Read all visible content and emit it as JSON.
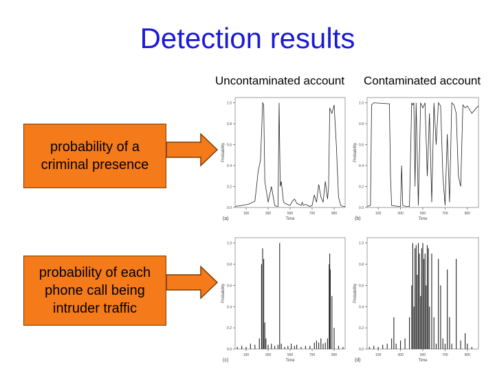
{
  "slide": {
    "title": "Detection results",
    "col_headers": [
      "Uncontaminated account",
      "Contaminated account"
    ],
    "row_labels": [
      "probability of a criminal presence",
      "probability of each phone call being intruder traffic"
    ]
  },
  "colors": {
    "title": "#1a1ad6",
    "box_fill": "#f47a1a",
    "arrow_fill": "#f47a1a",
    "trace": "#222222"
  },
  "chart_data": [
    {
      "type": "line",
      "panel_label": "(a)",
      "xlabel": "Time",
      "ylabel": "Probability",
      "xlim": [
        0,
        1000
      ],
      "ylim": [
        0,
        1.05
      ],
      "xticks": [
        100,
        300,
        500,
        700,
        900
      ],
      "xtick_labels": [
        "100",
        "300",
        "500",
        "700",
        "900"
      ],
      "yticks": [
        0,
        0.2,
        0.4,
        0.6,
        0.8,
        1.0
      ],
      "ytick_labels": [
        "0.0",
        "0.2",
        "0.4",
        "0.6",
        "0.8",
        "1.0"
      ],
      "series": [
        {
          "x": [
            0,
            60,
            120,
            180,
            210,
            230,
            240,
            250,
            260,
            270,
            300,
            330,
            360,
            380,
            390,
            400,
            410,
            420,
            440,
            470,
            500,
            520,
            540,
            560,
            580,
            600,
            610,
            620,
            640,
            660,
            680,
            700,
            720,
            740,
            760,
            780,
            800,
            820,
            840,
            850,
            860,
            880,
            900,
            920,
            940,
            960,
            980,
            1000
          ],
          "y": [
            0.01,
            0.02,
            0.03,
            0.06,
            0.35,
            0.45,
            0.7,
            1.0,
            0.98,
            0.25,
            0.05,
            0.2,
            0.02,
            0.01,
            0.01,
            1.0,
            0.2,
            0.25,
            0.05,
            0.03,
            0.02,
            0.06,
            0.08,
            0.04,
            0.03,
            0.02,
            0.05,
            0.02,
            0.03,
            0.02,
            0.01,
            0.02,
            0.12,
            0.05,
            0.22,
            0.1,
            0.05,
            0.25,
            0.08,
            0.2,
            0.95,
            0.9,
            0.98,
            0.6,
            0.1,
            0.02,
            0.01,
            0.01
          ]
        }
      ]
    },
    {
      "type": "line",
      "panel_label": "(b)",
      "xlabel": "Time",
      "ylabel": "Probability",
      "xlim": [
        0,
        1000
      ],
      "ylim": [
        0,
        1.05
      ],
      "xticks": [
        100,
        300,
        500,
        700,
        900
      ],
      "xtick_labels": [
        "100",
        "300",
        "500",
        "700",
        "900"
      ],
      "yticks": [
        0,
        0.2,
        0.4,
        0.6,
        0.8,
        1.0
      ],
      "ytick_labels": [
        "0.0",
        "0.2",
        "0.4",
        "0.6",
        "0.8",
        "1.0"
      ],
      "series": [
        {
          "x": [
            0,
            30,
            40,
            60,
            200,
            210,
            220,
            280,
            300,
            310,
            320,
            350,
            380,
            400,
            410,
            420,
            430,
            440,
            460,
            480,
            500,
            520,
            540,
            560,
            580,
            600,
            620,
            640,
            660,
            680,
            700,
            720,
            740,
            760,
            780,
            800,
            820,
            840,
            860,
            880,
            900,
            940,
            980,
            1000
          ],
          "y": [
            0.01,
            0.02,
            0.98,
            1.0,
            0.99,
            0.3,
            0.02,
            0.01,
            0.01,
            0.4,
            0.02,
            0.01,
            0.01,
            1.0,
            0.98,
            1.0,
            0.2,
            1.0,
            0.02,
            1.0,
            0.95,
            1.0,
            0.3,
            0.9,
            0.05,
            1.0,
            0.6,
            1.0,
            0.97,
            0.3,
            0.02,
            0.7,
            0.05,
            1.0,
            0.98,
            0.9,
            0.3,
            0.2,
            0.98,
            0.95,
            0.97,
            0.9,
            0.95,
            0.97
          ]
        }
      ]
    },
    {
      "type": "bar",
      "panel_label": "(c)",
      "xlabel": "Time",
      "ylabel": "Probability",
      "xlim": [
        0,
        1000
      ],
      "ylim": [
        0,
        1.05
      ],
      "xticks": [
        100,
        300,
        500,
        700,
        900
      ],
      "xtick_labels": [
        "100",
        "300",
        "500",
        "700",
        "900"
      ],
      "yticks": [
        0,
        0.2,
        0.4,
        0.6,
        0.8,
        1.0
      ],
      "ytick_labels": [
        "0.0",
        "0.2",
        "0.4",
        "0.6",
        "0.8",
        "1.0"
      ],
      "series": [
        {
          "x": [
            20,
            60,
            100,
            140,
            180,
            220,
            240,
            250,
            260,
            270,
            280,
            300,
            330,
            360,
            390,
            405,
            420,
            450,
            480,
            510,
            540,
            560,
            600,
            640,
            680,
            720,
            740,
            760,
            780,
            800,
            820,
            840,
            855,
            860,
            865,
            880,
            900,
            940,
            980
          ],
          "y": [
            0.02,
            0.03,
            0.02,
            0.05,
            0.04,
            0.1,
            0.8,
            0.95,
            0.85,
            0.25,
            0.1,
            0.04,
            0.05,
            0.03,
            0.04,
            1.0,
            0.05,
            0.02,
            0.03,
            0.05,
            0.03,
            0.04,
            0.02,
            0.03,
            0.03,
            0.06,
            0.08,
            0.06,
            0.1,
            0.05,
            0.06,
            0.1,
            0.8,
            0.9,
            0.75,
            0.5,
            0.2,
            0.03,
            0.02
          ]
        }
      ]
    },
    {
      "type": "bar",
      "panel_label": "(d)",
      "xlabel": "Time",
      "ylabel": "Probability",
      "xlim": [
        0,
        1000
      ],
      "ylim": [
        0,
        1.05
      ],
      "xticks": [
        100,
        300,
        500,
        700,
        900
      ],
      "xtick_labels": [
        "100",
        "300",
        "500",
        "700",
        "900"
      ],
      "yticks": [
        0,
        0.2,
        0.4,
        0.6,
        0.8,
        1.0
      ],
      "ytick_labels": [
        "0.0",
        "0.2",
        "0.4",
        "0.6",
        "0.8",
        "1.0"
      ],
      "series": [
        {
          "x": [
            20,
            60,
            100,
            140,
            180,
            220,
            240,
            260,
            300,
            340,
            380,
            400,
            410,
            420,
            430,
            440,
            450,
            460,
            470,
            480,
            490,
            500,
            510,
            520,
            530,
            540,
            550,
            560,
            580,
            600,
            620,
            640,
            660,
            680,
            700,
            720,
            740,
            760,
            800,
            840,
            880,
            900,
            940
          ],
          "y": [
            0.02,
            0.03,
            0.02,
            0.04,
            0.05,
            0.1,
            0.3,
            0.05,
            0.08,
            0.1,
            0.3,
            0.6,
            1.0,
            0.4,
            0.95,
            0.98,
            0.7,
            1.0,
            0.9,
            0.5,
            0.95,
            1.0,
            0.85,
            0.9,
            0.6,
            0.98,
            0.95,
            0.4,
            0.9,
            0.3,
            0.05,
            0.85,
            0.6,
            0.1,
            0.05,
            0.75,
            0.3,
            0.05,
            0.85,
            0.08,
            0.15,
            0.05,
            0.02
          ]
        }
      ]
    }
  ]
}
